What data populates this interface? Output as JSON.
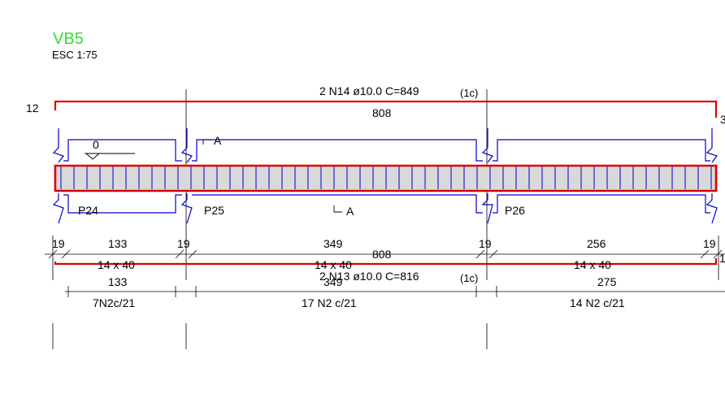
{
  "title": "VB5",
  "scale": "ESC 1:75",
  "colors": {
    "rebar": "#dd0000",
    "stirrup": "#0000cc",
    "concrete": "#d9d9d9",
    "title": "#33dd33"
  },
  "top_bar": {
    "label": "2 N14 ø10.0 C=849",
    "layer": "(1c)",
    "length": "808",
    "hook_left": "12",
    "hook_right": "3"
  },
  "bottom_bar": {
    "label": "2 N13 ø10.0 C=816",
    "layer": "(1c)",
    "length": "808",
    "hook_right": "1"
  },
  "section_mark": "A",
  "level_mark": "0",
  "supports": [
    {
      "name": "P24",
      "width": "19"
    },
    {
      "name": "P25",
      "width": "19"
    },
    {
      "name": "P26",
      "width": "19"
    },
    {
      "name": "",
      "width": "19"
    }
  ],
  "spans": [
    {
      "length": "133",
      "section": "14 x 40",
      "stirrup_length": "133",
      "stirrups": "7N2c/21"
    },
    {
      "length": "349",
      "section": "14 x 40",
      "stirrup_length": "349",
      "stirrups": "17 N2 c/21"
    },
    {
      "length": "256",
      "section": "14 x 40",
      "stirrup_length": "275",
      "stirrups": "14 N2 c/21"
    }
  ]
}
